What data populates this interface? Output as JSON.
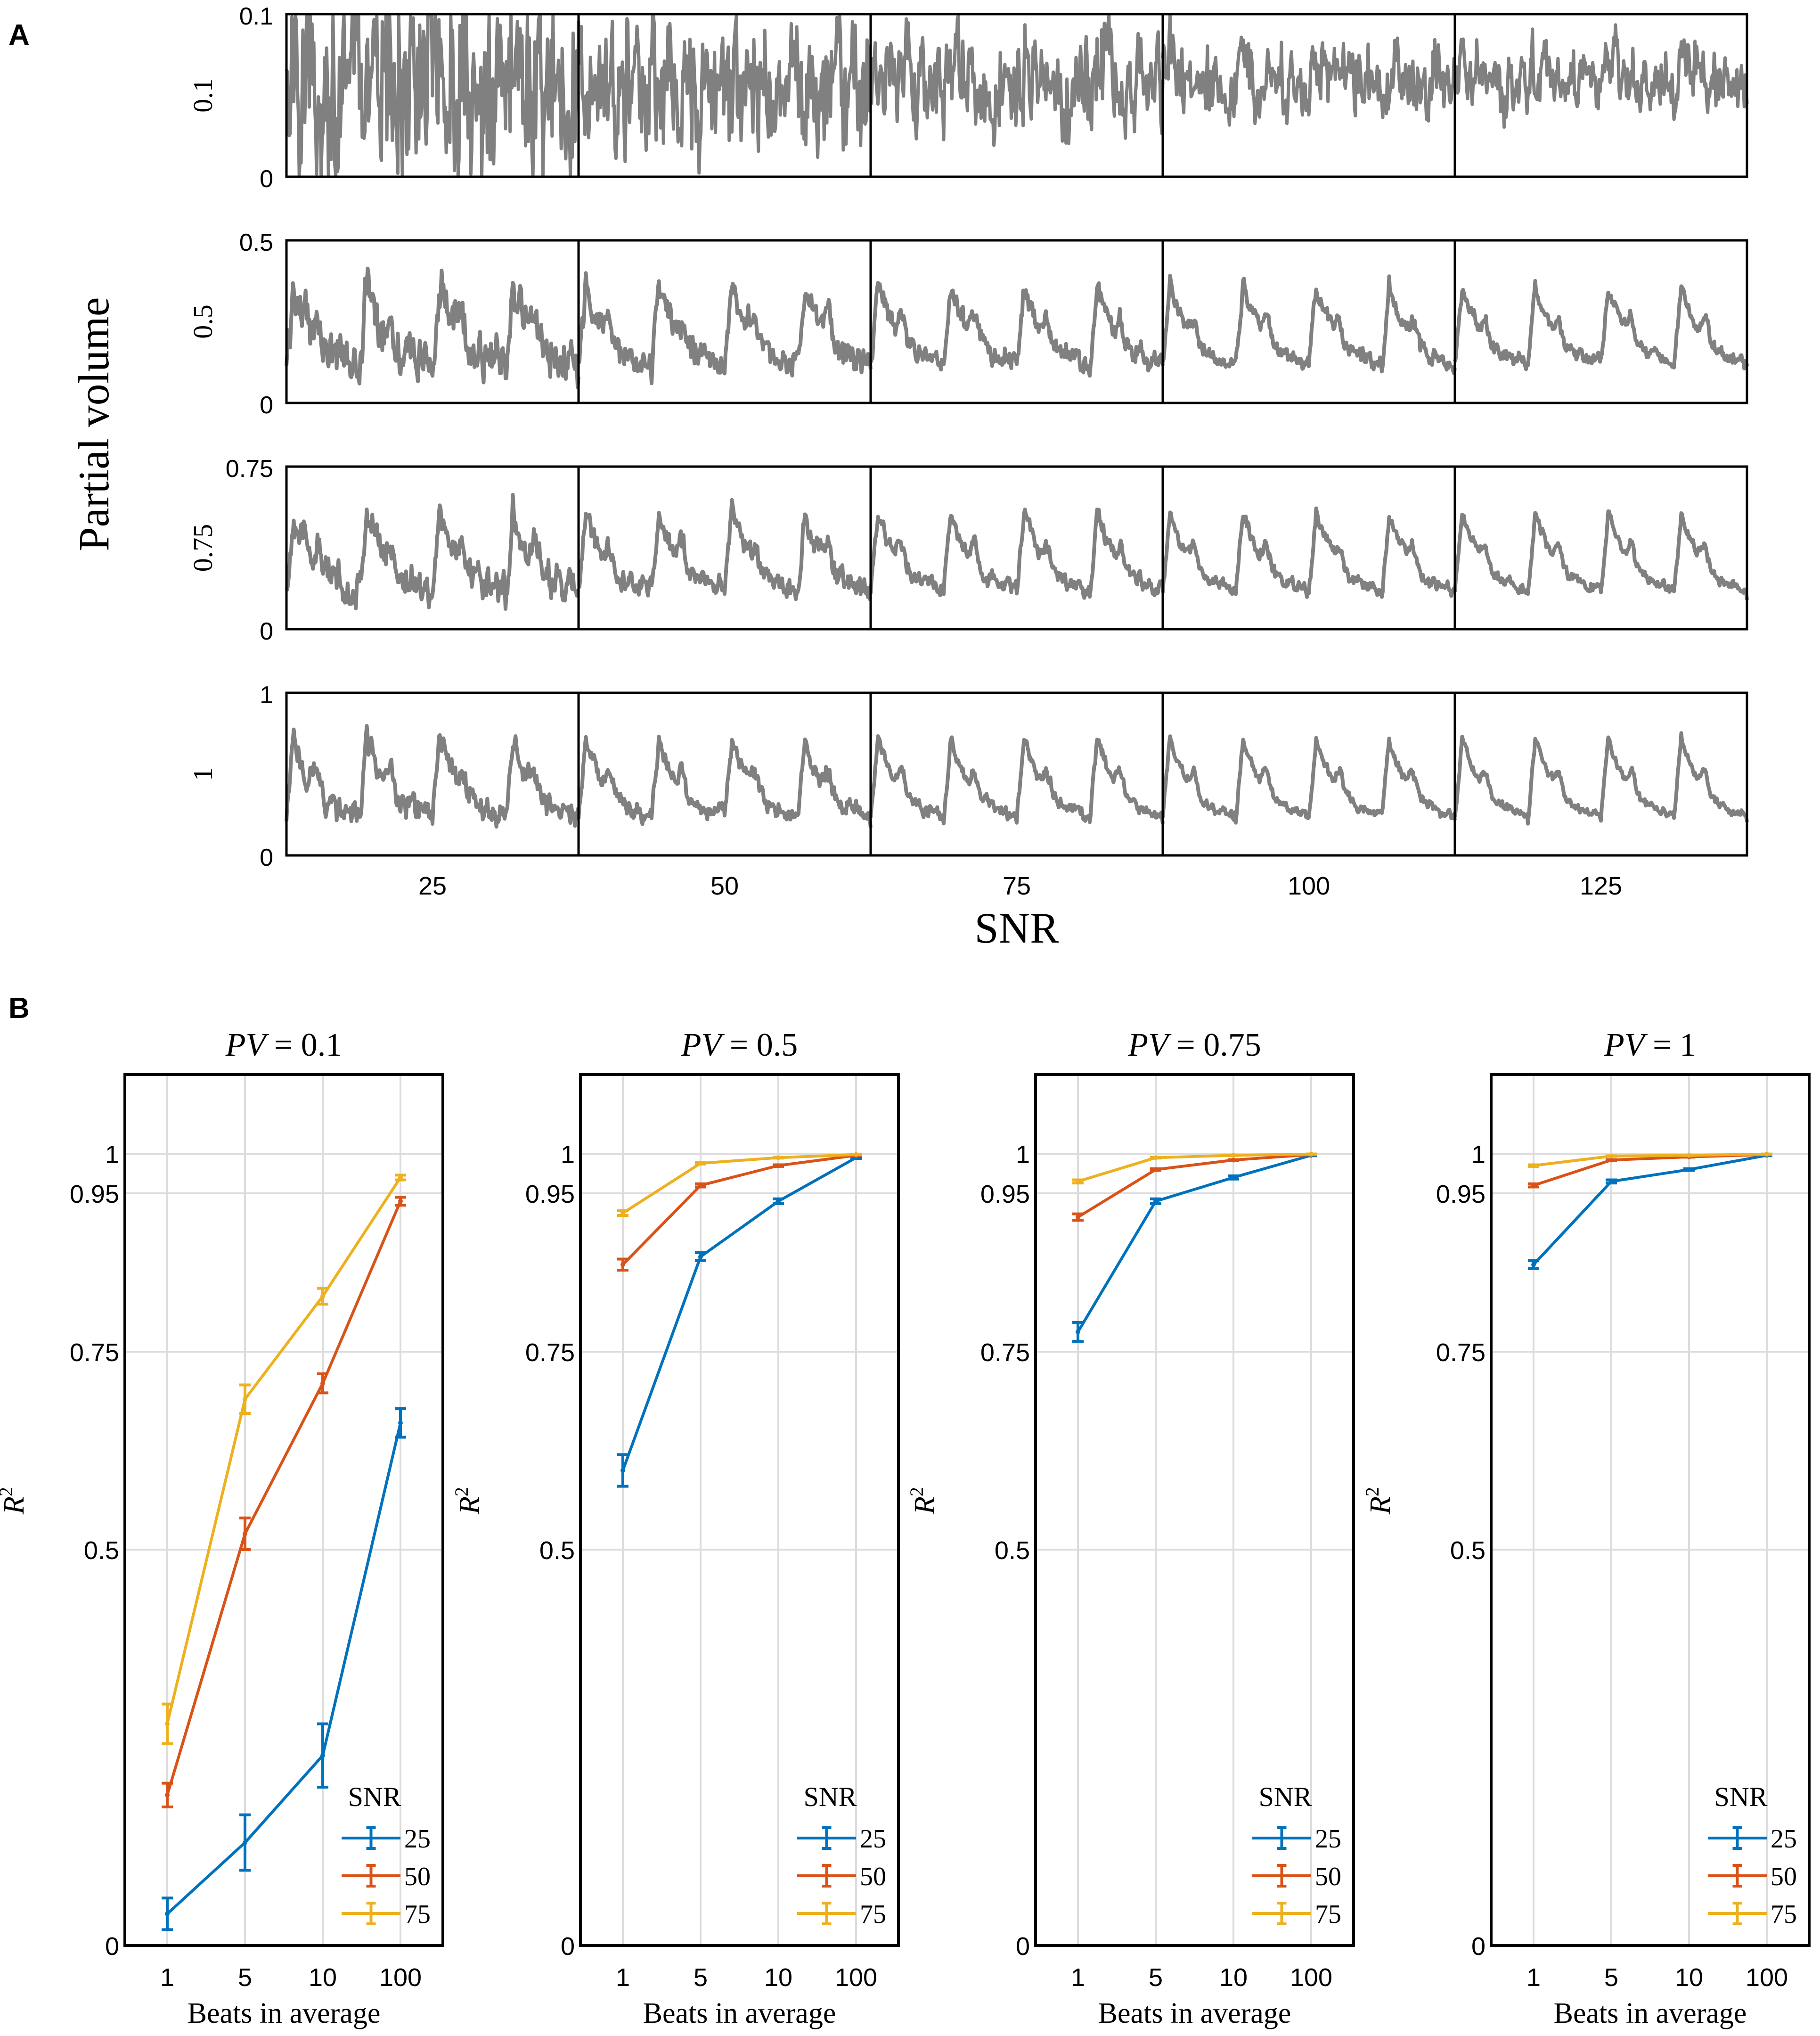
{
  "panel_a": {
    "label": "A",
    "ylabel": "Partial volume",
    "xlabel": "SNR",
    "snr_values": [
      "25",
      "50",
      "75",
      "100",
      "125"
    ],
    "rows": [
      {
        "pv_label": "0.1",
        "ytop": "0.1",
        "ybottom": "0",
        "noise": 1.0,
        "mean_level": 0.6
      },
      {
        "pv_label": "0.5",
        "ytop": "0.5",
        "ybottom": "0",
        "noise": 0.55,
        "mean_level": 0.55
      },
      {
        "pv_label": "0.75",
        "ytop": "0.75",
        "ybottom": "0",
        "noise": 0.42,
        "mean_level": 0.55
      },
      {
        "pv_label": "1",
        "ytop": "1",
        "ybottom": "0",
        "noise": 0.32,
        "mean_level": 0.55
      }
    ],
    "line_color": "#808080"
  },
  "panel_b": {
    "label": "B",
    "legend_title": "SNR",
    "colors": {
      "25": "#0072BD",
      "50": "#D95319",
      "75": "#EDB120"
    },
    "grid_color": "#dcdcdc"
  },
  "chart_data": [
    {
      "type": "line",
      "title": "PV = 0.1",
      "title_parts": {
        "left": "PV",
        "right": "= 0.1"
      },
      "xlabel": "Beats in average",
      "ylabel": "R2",
      "ylabel_parts": {
        "base": "R",
        "sup": "2"
      },
      "categories": [
        "1",
        "5",
        "10",
        "100"
      ],
      "yticks": [
        "0",
        "0.5",
        "0.75",
        "0.95",
        "1"
      ],
      "ylim": [
        0,
        1.1
      ],
      "legend": "bottom-right",
      "series": [
        {
          "name": "25",
          "values": [
            0.04,
            0.13,
            0.24,
            0.66
          ],
          "errors": [
            0.02,
            0.035,
            0.04,
            0.018
          ]
        },
        {
          "name": "50",
          "values": [
            0.19,
            0.52,
            0.71,
            0.94
          ],
          "errors": [
            0.015,
            0.02,
            0.012,
            0.005
          ]
        },
        {
          "name": "75",
          "values": [
            0.28,
            0.69,
            0.82,
            0.97
          ],
          "errors": [
            0.025,
            0.018,
            0.01,
            0.003
          ]
        }
      ]
    },
    {
      "type": "line",
      "title": "PV = 0.5",
      "title_parts": {
        "left": "PV",
        "right": "= 0.5"
      },
      "xlabel": "Beats in average",
      "ylabel": "R2",
      "ylabel_parts": {
        "base": "R",
        "sup": "2"
      },
      "categories": [
        "1",
        "5",
        "10",
        "100"
      ],
      "yticks": [
        "0",
        "0.5",
        "0.75",
        "0.95",
        "1"
      ],
      "ylim": [
        0,
        1.1
      ],
      "legend": "bottom-right",
      "series": [
        {
          "name": "25",
          "values": [
            0.6,
            0.87,
            0.94,
            0.995
          ],
          "errors": [
            0.02,
            0.005,
            0.003,
            0.001
          ]
        },
        {
          "name": "50",
          "values": [
            0.86,
            0.96,
            0.985,
            0.998
          ],
          "errors": [
            0.007,
            0.002,
            0.001,
            0.0005
          ]
        },
        {
          "name": "75",
          "values": [
            0.925,
            0.988,
            0.995,
            0.999
          ],
          "errors": [
            0.003,
            0.001,
            0.0005,
            0.0003
          ]
        }
      ]
    },
    {
      "type": "line",
      "title": "PV = 0.75",
      "title_parts": {
        "left": "PV",
        "right": "= 0.75"
      },
      "xlabel": "Beats in average",
      "ylabel": "R2",
      "ylabel_parts": {
        "base": "R",
        "sup": "2"
      },
      "categories": [
        "1",
        "5",
        "10",
        "100"
      ],
      "yticks": [
        "0",
        "0.5",
        "0.75",
        "0.95",
        "1"
      ],
      "ylim": [
        0,
        1.1
      ],
      "legend": "bottom-right",
      "series": [
        {
          "name": "25",
          "values": [
            0.775,
            0.94,
            0.97,
            0.998
          ],
          "errors": [
            0.012,
            0.003,
            0.002,
            0.0005
          ]
        },
        {
          "name": "50",
          "values": [
            0.92,
            0.98,
            0.992,
            0.999
          ],
          "errors": [
            0.004,
            0.001,
            0.0005,
            0.0003
          ]
        },
        {
          "name": "75",
          "values": [
            0.965,
            0.995,
            0.998,
            0.9995
          ],
          "errors": [
            0.002,
            0.0005,
            0.0003,
            0.0002
          ]
        }
      ]
    },
    {
      "type": "line",
      "title": "PV = 1",
      "title_parts": {
        "left": "PV",
        "right": "= 1"
      },
      "xlabel": "Beats in average",
      "ylabel": "R2",
      "ylabel_parts": {
        "base": "R",
        "sup": "2"
      },
      "categories": [
        "1",
        "5",
        "10",
        "100"
      ],
      "yticks": [
        "0",
        "0.5",
        "0.75",
        "0.95",
        "1"
      ],
      "ylim": [
        0,
        1.1
      ],
      "legend": "bottom-right",
      "series": [
        {
          "name": "25",
          "values": [
            0.86,
            0.965,
            0.98,
            0.998
          ],
          "errors": [
            0.005,
            0.002,
            0.001,
            0.0005
          ]
        },
        {
          "name": "50",
          "values": [
            0.96,
            0.992,
            0.996,
            0.999
          ],
          "errors": [
            0.002,
            0.0005,
            0.0003,
            0.0002
          ]
        },
        {
          "name": "75",
          "values": [
            0.985,
            0.997,
            0.998,
            0.9995
          ],
          "errors": [
            0.001,
            0.0003,
            0.0002,
            0.0001
          ]
        }
      ]
    }
  ]
}
